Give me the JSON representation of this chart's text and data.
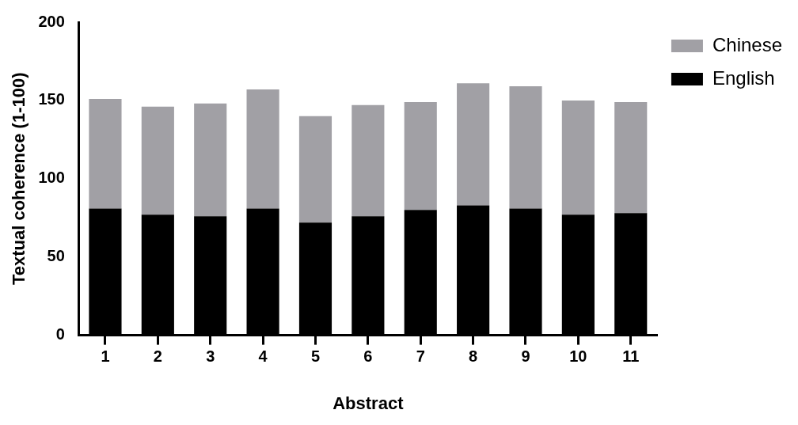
{
  "chart_data": {
    "type": "bar",
    "stacked": true,
    "xlabel": "Abstract",
    "ylabel": "Textual coherence (1-100)",
    "categories": [
      "1",
      "2",
      "3",
      "4",
      "5",
      "6",
      "7",
      "8",
      "9",
      "10",
      "11"
    ],
    "series": [
      {
        "name": "English",
        "color": "#000000",
        "values": [
          81,
          77,
          76,
          81,
          72,
          76,
          80,
          83,
          81,
          77,
          78
        ]
      },
      {
        "name": "Chinese",
        "color": "#a1a0a5",
        "values": [
          70,
          69,
          72,
          76,
          68,
          71,
          69,
          78,
          78,
          73,
          71
        ]
      }
    ],
    "ylim": [
      0,
      200
    ],
    "yticks": [
      0,
      50,
      100,
      150,
      200
    ],
    "grid": false,
    "legend": "top right"
  }
}
